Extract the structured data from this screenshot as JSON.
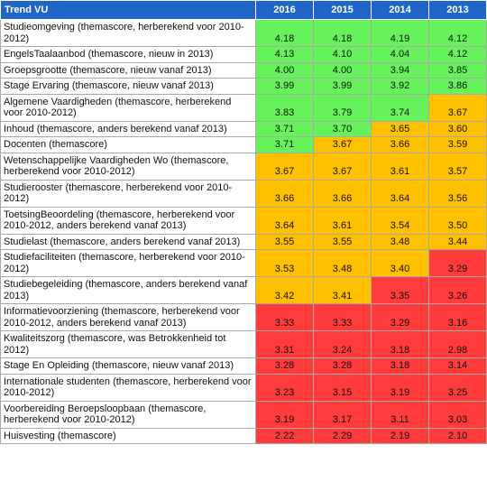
{
  "table": {
    "header": [
      "Trend VU",
      "2016",
      "2015",
      "2014",
      "2013"
    ],
    "palette": {
      "g": "#66f25a",
      "o": "#ffc000",
      "r": "#ff3b3b"
    },
    "rows": [
      {
        "label": "Studieomgeving (themascore, herberekend voor 2010-2012)",
        "values": [
          "4.18",
          "4.18",
          "4.19",
          "4.12"
        ],
        "colors": [
          "g",
          "g",
          "g",
          "g"
        ]
      },
      {
        "label": "EngelsTaalaanbod (themascore, nieuw in 2013)",
        "values": [
          "4.13",
          "4.10",
          "4.04",
          "4.12"
        ],
        "colors": [
          "g",
          "g",
          "g",
          "g"
        ]
      },
      {
        "label": "Groepsgrootte (themascore, nieuw vanaf 2013)",
        "values": [
          "4.00",
          "4.00",
          "3.94",
          "3.85"
        ],
        "colors": [
          "g",
          "g",
          "g",
          "g"
        ]
      },
      {
        "label": "Stage Ervaring (themascore, nieuw vanaf 2013)",
        "values": [
          "3.99",
          "3.99",
          "3.92",
          "3.86"
        ],
        "colors": [
          "g",
          "g",
          "g",
          "g"
        ]
      },
      {
        "label": "Algemene Vaardigheden (themascore, herberekend voor 2010-2012)",
        "values": [
          "3.83",
          "3.79",
          "3.74",
          "3.67"
        ],
        "colors": [
          "g",
          "g",
          "g",
          "o"
        ]
      },
      {
        "label": "Inhoud (themascore, anders berekend vanaf 2013)",
        "values": [
          "3.71",
          "3.70",
          "3.65",
          "3.60"
        ],
        "colors": [
          "g",
          "g",
          "o",
          "o"
        ]
      },
      {
        "label": "Docenten (themascore)",
        "values": [
          "3.71",
          "3.67",
          "3.66",
          "3.59"
        ],
        "colors": [
          "g",
          "o",
          "o",
          "o"
        ]
      },
      {
        "label": "Wetenschappelijke Vaardigheden Wo (themascore, herberekend voor 2010-2012)",
        "values": [
          "3.67",
          "3.67",
          "3.61",
          "3.57"
        ],
        "colors": [
          "o",
          "o",
          "o",
          "o"
        ]
      },
      {
        "label": "Studierooster (themascore, herberekend voor 2010-2012)",
        "values": [
          "3.66",
          "3.66",
          "3.64",
          "3.56"
        ],
        "colors": [
          "o",
          "o",
          "o",
          "o"
        ]
      },
      {
        "label": "ToetsingBeoordeling (themascore, herberekend voor 2010-2012, anders berekend vanaf 2013)",
        "values": [
          "3.64",
          "3.61",
          "3.54",
          "3.50"
        ],
        "colors": [
          "o",
          "o",
          "o",
          "o"
        ]
      },
      {
        "label": "Studielast (themascore, anders berekend vanaf 2013)",
        "values": [
          "3.55",
          "3.55",
          "3.48",
          "3.44"
        ],
        "colors": [
          "o",
          "o",
          "o",
          "o"
        ]
      },
      {
        "label": "Studiefaciliteiten (themascore, herberekend voor 2010-2012)",
        "values": [
          "3.53",
          "3.48",
          "3.40",
          "3.29"
        ],
        "colors": [
          "o",
          "o",
          "o",
          "r"
        ]
      },
      {
        "label": "Studiebegeleiding (themascore, anders berekend vanaf 2013)",
        "values": [
          "3.42",
          "3.41",
          "3.35",
          "3.26"
        ],
        "colors": [
          "o",
          "o",
          "r",
          "r"
        ]
      },
      {
        "label": "Informatievoorziening (themascore, herberekend voor 2010-2012, anders berekend vanaf 2013)",
        "values": [
          "3.33",
          "3.33",
          "3.29",
          "3.16"
        ],
        "colors": [
          "r",
          "r",
          "r",
          "r"
        ]
      },
      {
        "label": "Kwaliteitszorg (themascore, was Betrokkenheid tot 2012)",
        "values": [
          "3.31",
          "3.24",
          "3.18",
          "2.98"
        ],
        "colors": [
          "r",
          "r",
          "r",
          "r"
        ]
      },
      {
        "label": "Stage En Opleiding (themascore, nieuw vanaf 2013)",
        "values": [
          "3.28",
          "3.28",
          "3.18",
          "3.14"
        ],
        "colors": [
          "r",
          "r",
          "r",
          "r"
        ]
      },
      {
        "label": "Internationale studenten (themascore, herberekend voor 2010-2012)",
        "values": [
          "3.23",
          "3.15",
          "3.19",
          "3.25"
        ],
        "colors": [
          "r",
          "r",
          "r",
          "r"
        ]
      },
      {
        "label": "Voorbereiding Beroepsloopbaan (themascore, herberekend voor 2010-2012)",
        "values": [
          "3.19",
          "3.17",
          "3.11",
          "3.03"
        ],
        "colors": [
          "r",
          "r",
          "r",
          "r"
        ]
      },
      {
        "label": "Huisvesting (themascore)",
        "values": [
          "2.22",
          "2.29",
          "2.19",
          "2.10"
        ],
        "colors": [
          "r",
          "r",
          "r",
          "r"
        ]
      }
    ]
  }
}
